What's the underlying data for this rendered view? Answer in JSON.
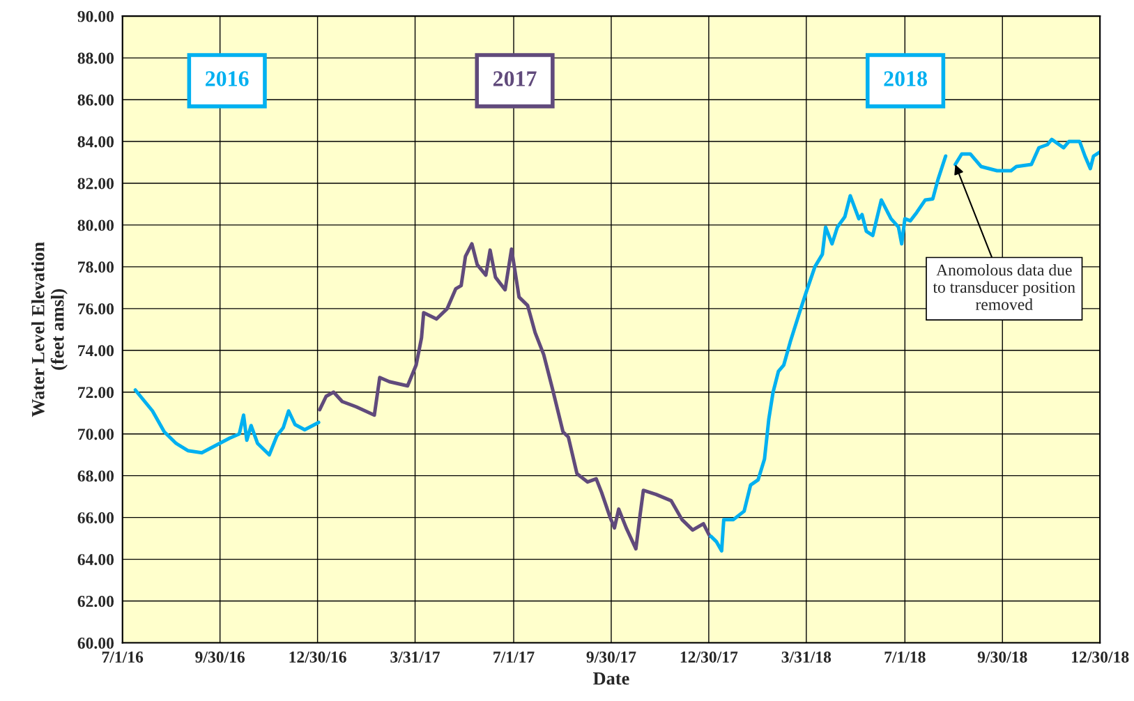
{
  "chart_data": {
    "type": "line",
    "xlabel": "Date",
    "ylabel": "Water Level Elevation\n(feet amsl)",
    "xlim": [
      "2016-07-01",
      "2018-12-30"
    ],
    "xticks": [
      {
        "value": "2016-07-01",
        "label": "7/1/16"
      },
      {
        "value": "2016-09-30",
        "label": "9/30/16"
      },
      {
        "value": "2016-12-30",
        "label": "12/30/16"
      },
      {
        "value": "2017-03-31",
        "label": "3/31/17"
      },
      {
        "value": "2017-07-01",
        "label": "7/1/17"
      },
      {
        "value": "2017-09-30",
        "label": "9/30/17"
      },
      {
        "value": "2017-12-30",
        "label": "12/30/17"
      },
      {
        "value": "2018-03-31",
        "label": "3/31/18"
      },
      {
        "value": "2018-07-01",
        "label": "7/1/18"
      },
      {
        "value": "2018-09-30",
        "label": "9/30/18"
      },
      {
        "value": "2018-12-30",
        "label": "12/30/18"
      }
    ],
    "ylim": [
      60,
      90
    ],
    "yticks": [
      {
        "value": 60,
        "label": "60.00"
      },
      {
        "value": 62,
        "label": "62.00"
      },
      {
        "value": 64,
        "label": "64.00"
      },
      {
        "value": 66,
        "label": "66.00"
      },
      {
        "value": 68,
        "label": "68.00"
      },
      {
        "value": 70,
        "label": "70.00"
      },
      {
        "value": 72,
        "label": "72.00"
      },
      {
        "value": 74,
        "label": "74.00"
      },
      {
        "value": 76,
        "label": "76.00"
      },
      {
        "value": 78,
        "label": "78.00"
      },
      {
        "value": 80,
        "label": "80.00"
      },
      {
        "value": 82,
        "label": "82.00"
      },
      {
        "value": 84,
        "label": "84.00"
      },
      {
        "value": 86,
        "label": "86.00"
      },
      {
        "value": 88,
        "label": "88.00"
      },
      {
        "value": 90,
        "label": "90.00"
      }
    ],
    "grid": true,
    "legend": false,
    "marker": "none",
    "line_style": "solid",
    "annotations": [
      {
        "text": "Anomolous data due\nto transducer position\nremoved",
        "x": "2018-08-17",
        "y": 82.9
      }
    ],
    "series": [
      {
        "name": "2016",
        "color": "#00b0f0",
        "x": [
          "2016-07-13",
          "2016-07-21",
          "2016-07-29",
          "2016-08-09",
          "2016-08-20",
          "2016-08-31",
          "2016-09-13",
          "2016-09-26",
          "2016-10-09",
          "2016-10-18",
          "2016-10-22",
          "2016-10-25",
          "2016-10-29",
          "2016-11-04",
          "2016-11-15",
          "2016-11-22",
          "2016-11-28",
          "2016-12-03",
          "2016-12-09",
          "2016-12-18",
          "2016-12-31"
        ],
        "values": [
          72.1,
          71.6,
          71.1,
          70.1,
          69.55,
          69.2,
          69.1,
          69.45,
          69.8,
          70.0,
          70.9,
          69.7,
          70.4,
          69.55,
          69.0,
          69.9,
          70.3,
          71.1,
          70.45,
          70.2,
          70.55
        ]
      },
      {
        "name": "2017",
        "color": "#604a7b",
        "x": [
          "2017-01-01",
          "2017-01-07",
          "2017-01-14",
          "2017-01-22",
          "2017-02-04",
          "2017-02-21",
          "2017-02-26",
          "2017-03-07",
          "2017-03-24",
          "2017-04-01",
          "2017-04-06",
          "2017-04-08",
          "2017-04-20",
          "2017-04-30",
          "2017-05-08",
          "2017-05-13",
          "2017-05-17",
          "2017-05-23",
          "2017-05-28",
          "2017-06-05",
          "2017-06-09",
          "2017-06-14",
          "2017-06-23",
          "2017-06-29",
          "2017-07-06",
          "2017-07-14",
          "2017-07-21",
          "2017-07-29",
          "2017-08-06",
          "2017-08-16",
          "2017-08-21",
          "2017-08-29",
          "2017-09-08",
          "2017-09-16",
          "2017-09-21",
          "2017-09-29",
          "2017-10-03",
          "2017-10-07",
          "2017-10-14",
          "2017-10-23",
          "2017-10-27",
          "2017-10-30",
          "2017-11-11",
          "2017-11-25",
          "2017-12-05",
          "2017-12-15",
          "2017-12-25",
          "2017-12-31"
        ],
        "values": [
          71.16,
          71.8,
          72.0,
          71.55,
          71.3,
          70.9,
          72.7,
          72.5,
          72.3,
          73.3,
          74.6,
          75.8,
          75.5,
          76.0,
          76.95,
          77.1,
          78.5,
          79.1,
          78.1,
          77.6,
          78.8,
          77.5,
          76.9,
          78.85,
          76.55,
          76.15,
          74.85,
          73.8,
          72.2,
          70.1,
          69.85,
          68.1,
          67.7,
          67.85,
          67.2,
          66.0,
          65.5,
          66.4,
          65.5,
          64.5,
          66.15,
          67.3,
          67.1,
          66.8,
          65.9,
          65.4,
          65.7,
          65.1
        ]
      },
      {
        "name": "2018",
        "color": "#00b0f0",
        "x": [
          "2018-01-01",
          "2018-01-06",
          "2018-01-11",
          "2018-01-13",
          "2018-01-22",
          "2018-02-01",
          "2018-02-07",
          "2018-02-14",
          "2018-02-20",
          "2018-02-24",
          "2018-02-28",
          "2018-03-05",
          "2018-03-10",
          "2018-03-16",
          "2018-03-24",
          "2018-03-31",
          "2018-04-08",
          "2018-04-15",
          "2018-04-18",
          "2018-04-24",
          "2018-04-29",
          "2018-05-06",
          "2018-05-11",
          "2018-05-19",
          "2018-05-22",
          "2018-05-26",
          "2018-06-01",
          "2018-06-09",
          "2018-06-18",
          "2018-06-25",
          "2018-06-28",
          "2018-07-01",
          "2018-07-06",
          "2018-07-12",
          "2018-07-20",
          "2018-07-27",
          "2018-08-01",
          "2018-08-08",
          "2018-08-12",
          "2018-08-17",
          "2018-08-23",
          "2018-08-31",
          "2018-09-10",
          "2018-09-25",
          "2018-10-08",
          "2018-10-13",
          "2018-10-27",
          "2018-11-03",
          "2018-11-11",
          "2018-11-15",
          "2018-11-26",
          "2018-12-01",
          "2018-12-11",
          "2018-12-16",
          "2018-12-21",
          "2018-12-24",
          "2018-12-30"
        ],
        "values": [
          65.1,
          64.85,
          64.4,
          65.9,
          65.9,
          66.3,
          67.55,
          67.8,
          68.8,
          70.7,
          72.0,
          73.0,
          73.3,
          74.4,
          75.7,
          76.8,
          78.0,
          78.6,
          79.9,
          79.1,
          79.9,
          80.4,
          81.4,
          80.3,
          80.5,
          79.7,
          79.5,
          81.2,
          80.3,
          79.9,
          79.1,
          80.3,
          80.2,
          80.6,
          81.2,
          81.25,
          82.2,
          83.3,
          null,
          82.9,
          83.4,
          83.4,
          82.8,
          82.6,
          82.6,
          82.8,
          82.9,
          83.7,
          83.85,
          84.1,
          83.7,
          84.0,
          84.0,
          83.3,
          82.7,
          83.3,
          83.5
        ]
      }
    ]
  }
}
